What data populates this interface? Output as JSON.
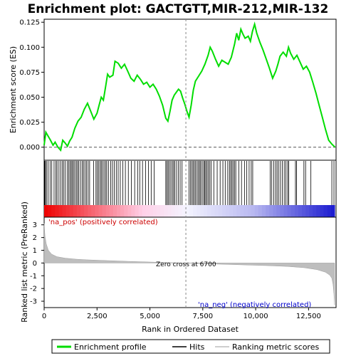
{
  "chart_data": {
    "type": "line",
    "title": "Enrichment plot: GACTGTT,MIR-212,MIR-132",
    "xlabel": "Rank in Ordered Dataset",
    "ylabel_top": "Enrichment score (ES)",
    "ylabel_bottom": "Ranked list metric (PreRanked)",
    "xlim": [
      0,
      13800
    ],
    "x_ticks": [
      0,
      2500,
      5000,
      7500,
      10000,
      12500
    ],
    "x_tick_labels": [
      "0",
      "2,500",
      "5,000",
      "7,500",
      "10,000",
      "12,500"
    ],
    "es_ylim": [
      -0.013,
      0.128
    ],
    "es_ticks": [
      0.0,
      0.025,
      0.05,
      0.075,
      0.1,
      0.125
    ],
    "es_tick_labels": [
      "0.000",
      "0.025",
      "0.050",
      "0.075",
      "0.100",
      "0.125"
    ],
    "metric_ylim": [
      -3.5,
      3.6
    ],
    "metric_ticks": [
      3,
      2,
      1,
      0,
      -1,
      -2,
      -3
    ],
    "metric_tick_labels": [
      "3",
      "2",
      "1",
      "0",
      "-1",
      "-2",
      "-3"
    ],
    "series": [
      {
        "name": "Enrichment profile",
        "color": "#00dd00",
        "x": [
          0,
          80,
          160,
          300,
          420,
          520,
          650,
          780,
          880,
          1000,
          1100,
          1200,
          1320,
          1450,
          1600,
          1750,
          1900,
          2050,
          2200,
          2350,
          2500,
          2600,
          2700,
          2800,
          2900,
          3000,
          3100,
          3250,
          3350,
          3500,
          3650,
          3800,
          3950,
          4100,
          4250,
          4400,
          4550,
          4700,
          4850,
          5000,
          5150,
          5300,
          5450,
          5600,
          5750,
          5850,
          5950,
          6050,
          6150,
          6250,
          6350,
          6450,
          6550,
          6650,
          6750,
          6850,
          6950,
          7050,
          7150,
          7300,
          7450,
          7600,
          7750,
          7850,
          7950,
          8100,
          8250,
          8400,
          8550,
          8700,
          8850,
          9000,
          9100,
          9200,
          9300,
          9400,
          9500,
          9650,
          9750,
          9850,
          9950,
          10050,
          10200,
          10350,
          10500,
          10650,
          10800,
          10950,
          11050,
          11150,
          11300,
          11450,
          11550,
          11650,
          11800,
          11950,
          12100,
          12250,
          12400,
          12550,
          12700,
          12850,
          13000,
          13150,
          13300,
          13450,
          13600,
          13750
        ],
        "y": [
          0.002,
          0.015,
          0.012,
          0.007,
          0.002,
          0.005,
          0.0,
          -0.003,
          0.007,
          0.004,
          0.001,
          0.006,
          0.01,
          0.019,
          0.026,
          0.03,
          0.038,
          0.044,
          0.036,
          0.028,
          0.034,
          0.042,
          0.05,
          0.047,
          0.06,
          0.073,
          0.07,
          0.072,
          0.086,
          0.084,
          0.079,
          0.083,
          0.076,
          0.069,
          0.066,
          0.072,
          0.068,
          0.063,
          0.065,
          0.06,
          0.063,
          0.058,
          0.051,
          0.042,
          0.029,
          0.026,
          0.036,
          0.047,
          0.052,
          0.055,
          0.058,
          0.056,
          0.049,
          0.043,
          0.036,
          0.03,
          0.042,
          0.057,
          0.066,
          0.071,
          0.076,
          0.083,
          0.092,
          0.1,
          0.096,
          0.088,
          0.081,
          0.087,
          0.085,
          0.083,
          0.09,
          0.103,
          0.114,
          0.107,
          0.118,
          0.113,
          0.109,
          0.111,
          0.106,
          0.116,
          0.123,
          0.114,
          0.105,
          0.097,
          0.088,
          0.079,
          0.069,
          0.076,
          0.083,
          0.091,
          0.095,
          0.091,
          0.1,
          0.094,
          0.088,
          0.092,
          0.085,
          0.078,
          0.081,
          0.075,
          0.065,
          0.054,
          0.042,
          0.03,
          0.018,
          0.007,
          0.003,
          0.0
        ]
      },
      {
        "name": "Hits",
        "color": "#000000",
        "positions": [
          30,
          60,
          110,
          190,
          280,
          360,
          470,
          560,
          610,
          700,
          780,
          860,
          930,
          1000,
          1090,
          1160,
          1220,
          1280,
          1330,
          1390,
          1450,
          1520,
          1580,
          1640,
          1720,
          1800,
          1860,
          1930,
          2000,
          2080,
          2150,
          2340,
          2450,
          2510,
          2570,
          2640,
          2700,
          2760,
          2830,
          2900,
          2960,
          3040,
          3150,
          3230,
          3320,
          3410,
          3500,
          3600,
          3720,
          3840,
          3980,
          4120,
          4280,
          4420,
          4520,
          4650,
          4800,
          4930,
          5060,
          5200,
          5750,
          5800,
          5860,
          5920,
          5990,
          6060,
          6120,
          6180,
          6260,
          6350,
          6430,
          6520,
          6850,
          6920,
          6980,
          7040,
          7100,
          7160,
          7230,
          7290,
          7350,
          7400,
          7470,
          7540,
          7590,
          7640,
          7700,
          7760,
          7830,
          7890,
          8020,
          8180,
          8320,
          8450,
          8560,
          8680,
          8760,
          8820,
          8880,
          8940,
          9000,
          9060,
          9200,
          9330,
          9470,
          9580,
          9690,
          9790,
          9860,
          10690,
          10760,
          10850,
          10940,
          11010,
          11080,
          11170,
          11260,
          11350,
          11430,
          11510,
          11560,
          11880,
          11930,
          12280,
          12360,
          12610,
          13600,
          13700
        ]
      },
      {
        "name": "Ranking metric scores",
        "color": "#bebebe",
        "x": [
          0,
          40,
          100,
          200,
          350,
          600,
          1000,
          1500,
          2000,
          3000,
          4000,
          5000,
          6000,
          6700,
          7500,
          8500,
          9500,
          10500,
          11500,
          12300,
          12900,
          13300,
          13500,
          13600,
          13660,
          13700,
          13730
        ],
        "y": [
          3.1,
          2.1,
          1.5,
          1.0,
          0.7,
          0.5,
          0.38,
          0.3,
          0.25,
          0.19,
          0.13,
          0.08,
          0.03,
          0.0,
          -0.05,
          -0.1,
          -0.15,
          -0.2,
          -0.27,
          -0.37,
          -0.52,
          -0.72,
          -0.95,
          -1.2,
          -1.7,
          -2.4,
          -3.3
        ]
      }
    ],
    "annotations": {
      "pos_label": "'na_pos' (positively correlated)",
      "neg_label": "'na_neg' (negatively correlated)",
      "zero_cross_label": "Zero cross at 6700",
      "zero_cross_x": 6700
    },
    "heatbar_colors": {
      "pos_strong": "#ee0000",
      "pos_weak": "#ffd0e8",
      "neutral": "#f4f4ff",
      "neg_weak": "#b8b8f0",
      "neg_strong": "#1a1ad0"
    },
    "legend": {
      "placement": "bottom",
      "items": [
        "Enrichment profile",
        "Hits",
        "Ranking metric scores"
      ]
    }
  }
}
